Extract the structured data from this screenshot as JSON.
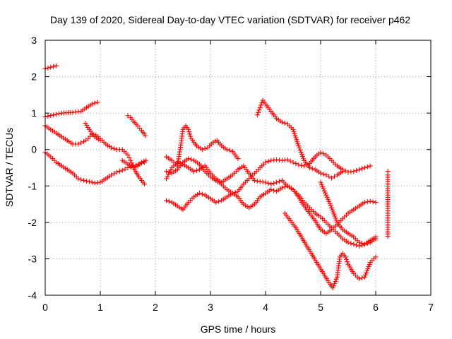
{
  "chart_data": {
    "type": "scatter",
    "title": "Day 139 of 2020, Sidereal Day-to-day VTEC variation (SDTVAR) for receiver p462",
    "xlabel": "GPS time / hours",
    "ylabel": "SDTVAR / TECUs",
    "xlim": [
      0,
      7
    ],
    "ylim": [
      -4,
      3
    ],
    "xticks": [
      0,
      1,
      2,
      3,
      4,
      5,
      6,
      7
    ],
    "yticks": [
      -4,
      -3,
      -2,
      -1,
      0,
      1,
      2,
      3
    ],
    "grid": true,
    "marker": "+",
    "color": "#ff0000",
    "series": [
      {
        "points": [
          [
            0.0,
            2.22
          ],
          [
            0.1,
            2.26
          ],
          [
            0.2,
            2.3
          ]
        ]
      },
      {
        "points": [
          [
            0.0,
            0.9
          ],
          [
            0.15,
            0.95
          ],
          [
            0.3,
            1.0
          ],
          [
            0.5,
            1.02
          ],
          [
            0.65,
            1.05
          ],
          [
            0.75,
            1.15
          ],
          [
            0.85,
            1.25
          ],
          [
            0.95,
            1.3
          ]
        ]
      },
      {
        "points": [
          [
            0.0,
            0.65
          ],
          [
            0.1,
            0.55
          ],
          [
            0.2,
            0.45
          ],
          [
            0.3,
            0.35
          ],
          [
            0.4,
            0.25
          ],
          [
            0.5,
            0.15
          ],
          [
            0.6,
            0.15
          ],
          [
            0.7,
            0.22
          ],
          [
            0.78,
            0.3
          ],
          [
            0.85,
            0.42
          ],
          [
            0.92,
            0.4
          ],
          [
            1.0,
            0.3
          ],
          [
            1.1,
            0.15
          ],
          [
            1.2,
            0.05
          ],
          [
            1.3,
            0.0
          ],
          [
            1.4,
            0.0
          ],
          [
            1.5,
            -0.15
          ],
          [
            1.55,
            -0.3
          ],
          [
            1.6,
            -0.5
          ],
          [
            1.68,
            -0.45
          ],
          [
            1.75,
            -0.35
          ],
          [
            1.83,
            -0.3
          ]
        ]
      },
      {
        "points": [
          [
            0.73,
            0.72
          ],
          [
            0.8,
            0.55
          ],
          [
            0.9,
            0.35
          ],
          [
            1.0,
            0.25
          ]
        ]
      },
      {
        "points": [
          [
            0.0,
            -0.08
          ],
          [
            0.1,
            -0.2
          ],
          [
            0.2,
            -0.35
          ],
          [
            0.3,
            -0.45
          ],
          [
            0.4,
            -0.55
          ],
          [
            0.5,
            -0.65
          ],
          [
            0.6,
            -0.8
          ],
          [
            0.7,
            -0.85
          ],
          [
            0.8,
            -0.88
          ],
          [
            0.9,
            -0.92
          ],
          [
            1.0,
            -0.9
          ],
          [
            1.1,
            -0.8
          ],
          [
            1.2,
            -0.7
          ],
          [
            1.3,
            -0.62
          ],
          [
            1.4,
            -0.57
          ],
          [
            1.5,
            -0.5
          ],
          [
            1.6,
            -0.45
          ],
          [
            1.7,
            -0.4
          ],
          [
            1.8,
            -0.35
          ]
        ]
      },
      {
        "points": [
          [
            1.5,
            0.93
          ],
          [
            1.55,
            0.88
          ],
          [
            1.6,
            0.78
          ],
          [
            1.68,
            0.65
          ],
          [
            1.75,
            0.52
          ],
          [
            1.82,
            0.38
          ]
        ]
      },
      {
        "points": [
          [
            1.4,
            -0.3
          ],
          [
            1.5,
            -0.4
          ],
          [
            1.6,
            -0.5
          ],
          [
            1.7,
            -0.75
          ],
          [
            1.8,
            -0.95
          ]
        ]
      },
      {
        "points": [
          [
            2.2,
            -0.2
          ],
          [
            2.3,
            -0.3
          ],
          [
            2.4,
            -0.45
          ],
          [
            2.45,
            0.0
          ],
          [
            2.5,
            0.55
          ],
          [
            2.55,
            0.65
          ],
          [
            2.6,
            0.55
          ],
          [
            2.65,
            0.3
          ],
          [
            2.75,
            0.1
          ],
          [
            2.85,
            0.0
          ],
          [
            2.95,
            0.05
          ],
          [
            3.05,
            0.2
          ],
          [
            3.12,
            0.25
          ],
          [
            3.2,
            0.1
          ],
          [
            3.3,
            0.0
          ],
          [
            3.4,
            -0.05
          ],
          [
            3.5,
            -0.25
          ]
        ]
      },
      {
        "points": [
          [
            2.2,
            -0.8
          ],
          [
            2.3,
            -0.5
          ],
          [
            2.4,
            -0.35
          ],
          [
            2.5,
            -0.4
          ],
          [
            2.6,
            -0.5
          ],
          [
            2.7,
            -0.6
          ],
          [
            2.8,
            -0.55
          ],
          [
            2.9,
            -0.45
          ],
          [
            3.0,
            -0.65
          ],
          [
            3.1,
            -0.8
          ],
          [
            3.2,
            -0.9
          ],
          [
            3.3,
            -0.8
          ],
          [
            3.4,
            -0.7
          ],
          [
            3.5,
            -0.55
          ],
          [
            3.6,
            -0.45
          ],
          [
            3.7,
            -0.65
          ],
          [
            3.8,
            -0.85
          ],
          [
            3.9,
            -0.88
          ],
          [
            4.0,
            -0.9
          ],
          [
            4.1,
            -0.95
          ],
          [
            4.2,
            -0.9
          ],
          [
            4.3,
            -0.85
          ],
          [
            4.4,
            -1.0
          ],
          [
            4.5,
            -1.1
          ],
          [
            4.6,
            -1.3
          ],
          [
            4.7,
            -1.55
          ],
          [
            4.8,
            -1.75
          ],
          [
            4.9,
            -1.95
          ],
          [
            5.0,
            -2.2
          ],
          [
            5.1,
            -2.3
          ],
          [
            5.2,
            -2.2
          ],
          [
            5.3,
            -2.05
          ],
          [
            5.4,
            -1.9
          ],
          [
            5.5,
            -1.75
          ],
          [
            5.6,
            -1.65
          ],
          [
            5.7,
            -1.55
          ],
          [
            5.8,
            -1.45
          ],
          [
            5.9,
            -1.42
          ],
          [
            6.0,
            -1.45
          ]
        ]
      },
      {
        "points": [
          [
            2.2,
            -0.6
          ],
          [
            2.3,
            -0.65
          ],
          [
            2.4,
            -0.55
          ],
          [
            2.5,
            -0.35
          ],
          [
            2.6,
            -0.25
          ],
          [
            2.7,
            -0.3
          ],
          [
            2.8,
            -0.4
          ],
          [
            2.9,
            -0.6
          ],
          [
            3.0,
            -0.75
          ],
          [
            3.1,
            -0.85
          ],
          [
            3.2,
            -0.95
          ],
          [
            3.3,
            -1.1
          ],
          [
            3.4,
            -1.2
          ],
          [
            3.5,
            -1.15
          ],
          [
            3.6,
            -0.95
          ],
          [
            3.7,
            -0.8
          ],
          [
            3.8,
            -0.65
          ],
          [
            3.9,
            -0.5
          ],
          [
            4.0,
            -0.35
          ],
          [
            4.1,
            -0.3
          ],
          [
            4.2,
            -0.28
          ],
          [
            4.3,
            -0.3
          ],
          [
            4.4,
            -0.28
          ],
          [
            4.5,
            -0.35
          ],
          [
            4.6,
            -0.42
          ],
          [
            4.7,
            -0.45
          ],
          [
            4.8,
            -0.38
          ],
          [
            4.9,
            -0.2
          ],
          [
            5.0,
            -0.08
          ],
          [
            5.1,
            -0.15
          ],
          [
            5.2,
            -0.3
          ],
          [
            5.3,
            -0.45
          ],
          [
            5.4,
            -0.55
          ],
          [
            5.5,
            -0.62
          ],
          [
            5.6,
            -0.6
          ],
          [
            5.7,
            -0.55
          ],
          [
            5.8,
            -0.5
          ],
          [
            5.9,
            -0.45
          ]
        ]
      },
      {
        "points": [
          [
            2.2,
            -1.4
          ],
          [
            2.3,
            -1.45
          ],
          [
            2.4,
            -1.55
          ],
          [
            2.5,
            -1.65
          ],
          [
            2.6,
            -1.45
          ],
          [
            2.7,
            -1.3
          ],
          [
            2.8,
            -1.2
          ],
          [
            2.9,
            -1.25
          ],
          [
            3.0,
            -1.35
          ],
          [
            3.1,
            -1.45
          ],
          [
            3.2,
            -1.4
          ],
          [
            3.3,
            -1.3
          ],
          [
            3.4,
            -1.2
          ],
          [
            3.5,
            -1.3
          ],
          [
            3.6,
            -1.5
          ],
          [
            3.7,
            -1.6
          ],
          [
            3.8,
            -1.5
          ],
          [
            3.9,
            -1.3
          ],
          [
            4.0,
            -1.2
          ],
          [
            4.1,
            -1.1
          ],
          [
            4.2,
            -1.15
          ],
          [
            4.3,
            -1.05
          ],
          [
            4.4,
            -1.0
          ],
          [
            4.5,
            -1.1
          ],
          [
            4.6,
            -1.25
          ],
          [
            4.7,
            -1.45
          ],
          [
            4.8,
            -1.6
          ],
          [
            4.9,
            -1.75
          ],
          [
            5.0,
            -1.85
          ],
          [
            5.1,
            -2.0
          ],
          [
            5.2,
            -2.15
          ],
          [
            5.3,
            -2.3
          ],
          [
            5.4,
            -2.45
          ],
          [
            5.5,
            -2.55
          ],
          [
            5.6,
            -2.6
          ],
          [
            5.7,
            -2.65
          ],
          [
            5.8,
            -2.6
          ],
          [
            5.9,
            -2.5
          ],
          [
            6.0,
            -2.4
          ]
        ]
      },
      {
        "points": [
          [
            3.85,
            0.95
          ],
          [
            3.9,
            1.15
          ],
          [
            3.95,
            1.35
          ],
          [
            4.0,
            1.25
          ],
          [
            4.1,
            1.05
          ],
          [
            4.2,
            0.85
          ],
          [
            4.3,
            0.75
          ],
          [
            4.4,
            0.7
          ],
          [
            4.5,
            0.55
          ],
          [
            4.6,
            0.1
          ],
          [
            4.7,
            -0.3
          ],
          [
            4.8,
            -0.5
          ],
          [
            4.9,
            -0.55
          ],
          [
            5.0,
            -0.65
          ],
          [
            5.1,
            -0.7
          ],
          [
            5.2,
            -0.78
          ],
          [
            5.3,
            -0.7
          ],
          [
            5.4,
            -0.6
          ]
        ]
      },
      {
        "points": [
          [
            4.35,
            -1.75
          ],
          [
            4.45,
            -1.95
          ],
          [
            4.55,
            -2.15
          ],
          [
            4.65,
            -2.4
          ],
          [
            4.75,
            -2.65
          ],
          [
            4.85,
            -2.9
          ],
          [
            4.95,
            -3.15
          ],
          [
            5.05,
            -3.4
          ],
          [
            5.15,
            -3.65
          ],
          [
            5.22,
            -3.8
          ],
          [
            5.3,
            -3.5
          ],
          [
            5.35,
            -2.95
          ],
          [
            5.4,
            -2.85
          ],
          [
            5.45,
            -2.95
          ],
          [
            5.5,
            -3.15
          ],
          [
            5.6,
            -3.4
          ],
          [
            5.7,
            -3.55
          ],
          [
            5.8,
            -3.5
          ],
          [
            5.9,
            -3.1
          ],
          [
            6.0,
            -2.95
          ]
        ]
      },
      {
        "points": [
          [
            5.0,
            -0.9
          ],
          [
            5.1,
            -1.25
          ],
          [
            5.2,
            -1.6
          ],
          [
            5.3,
            -2.0
          ],
          [
            5.4,
            -2.2
          ],
          [
            5.5,
            -2.3
          ],
          [
            5.6,
            -2.4
          ],
          [
            5.7,
            -2.55
          ],
          [
            5.8,
            -2.6
          ],
          [
            5.9,
            -2.55
          ],
          [
            6.0,
            -2.45
          ]
        ]
      },
      {
        "points": [
          [
            6.22,
            -0.6
          ],
          [
            6.22,
            -0.7
          ],
          [
            6.22,
            -1.62
          ],
          [
            6.22,
            -2.2
          ],
          [
            6.22,
            -2.38
          ]
        ]
      }
    ]
  }
}
